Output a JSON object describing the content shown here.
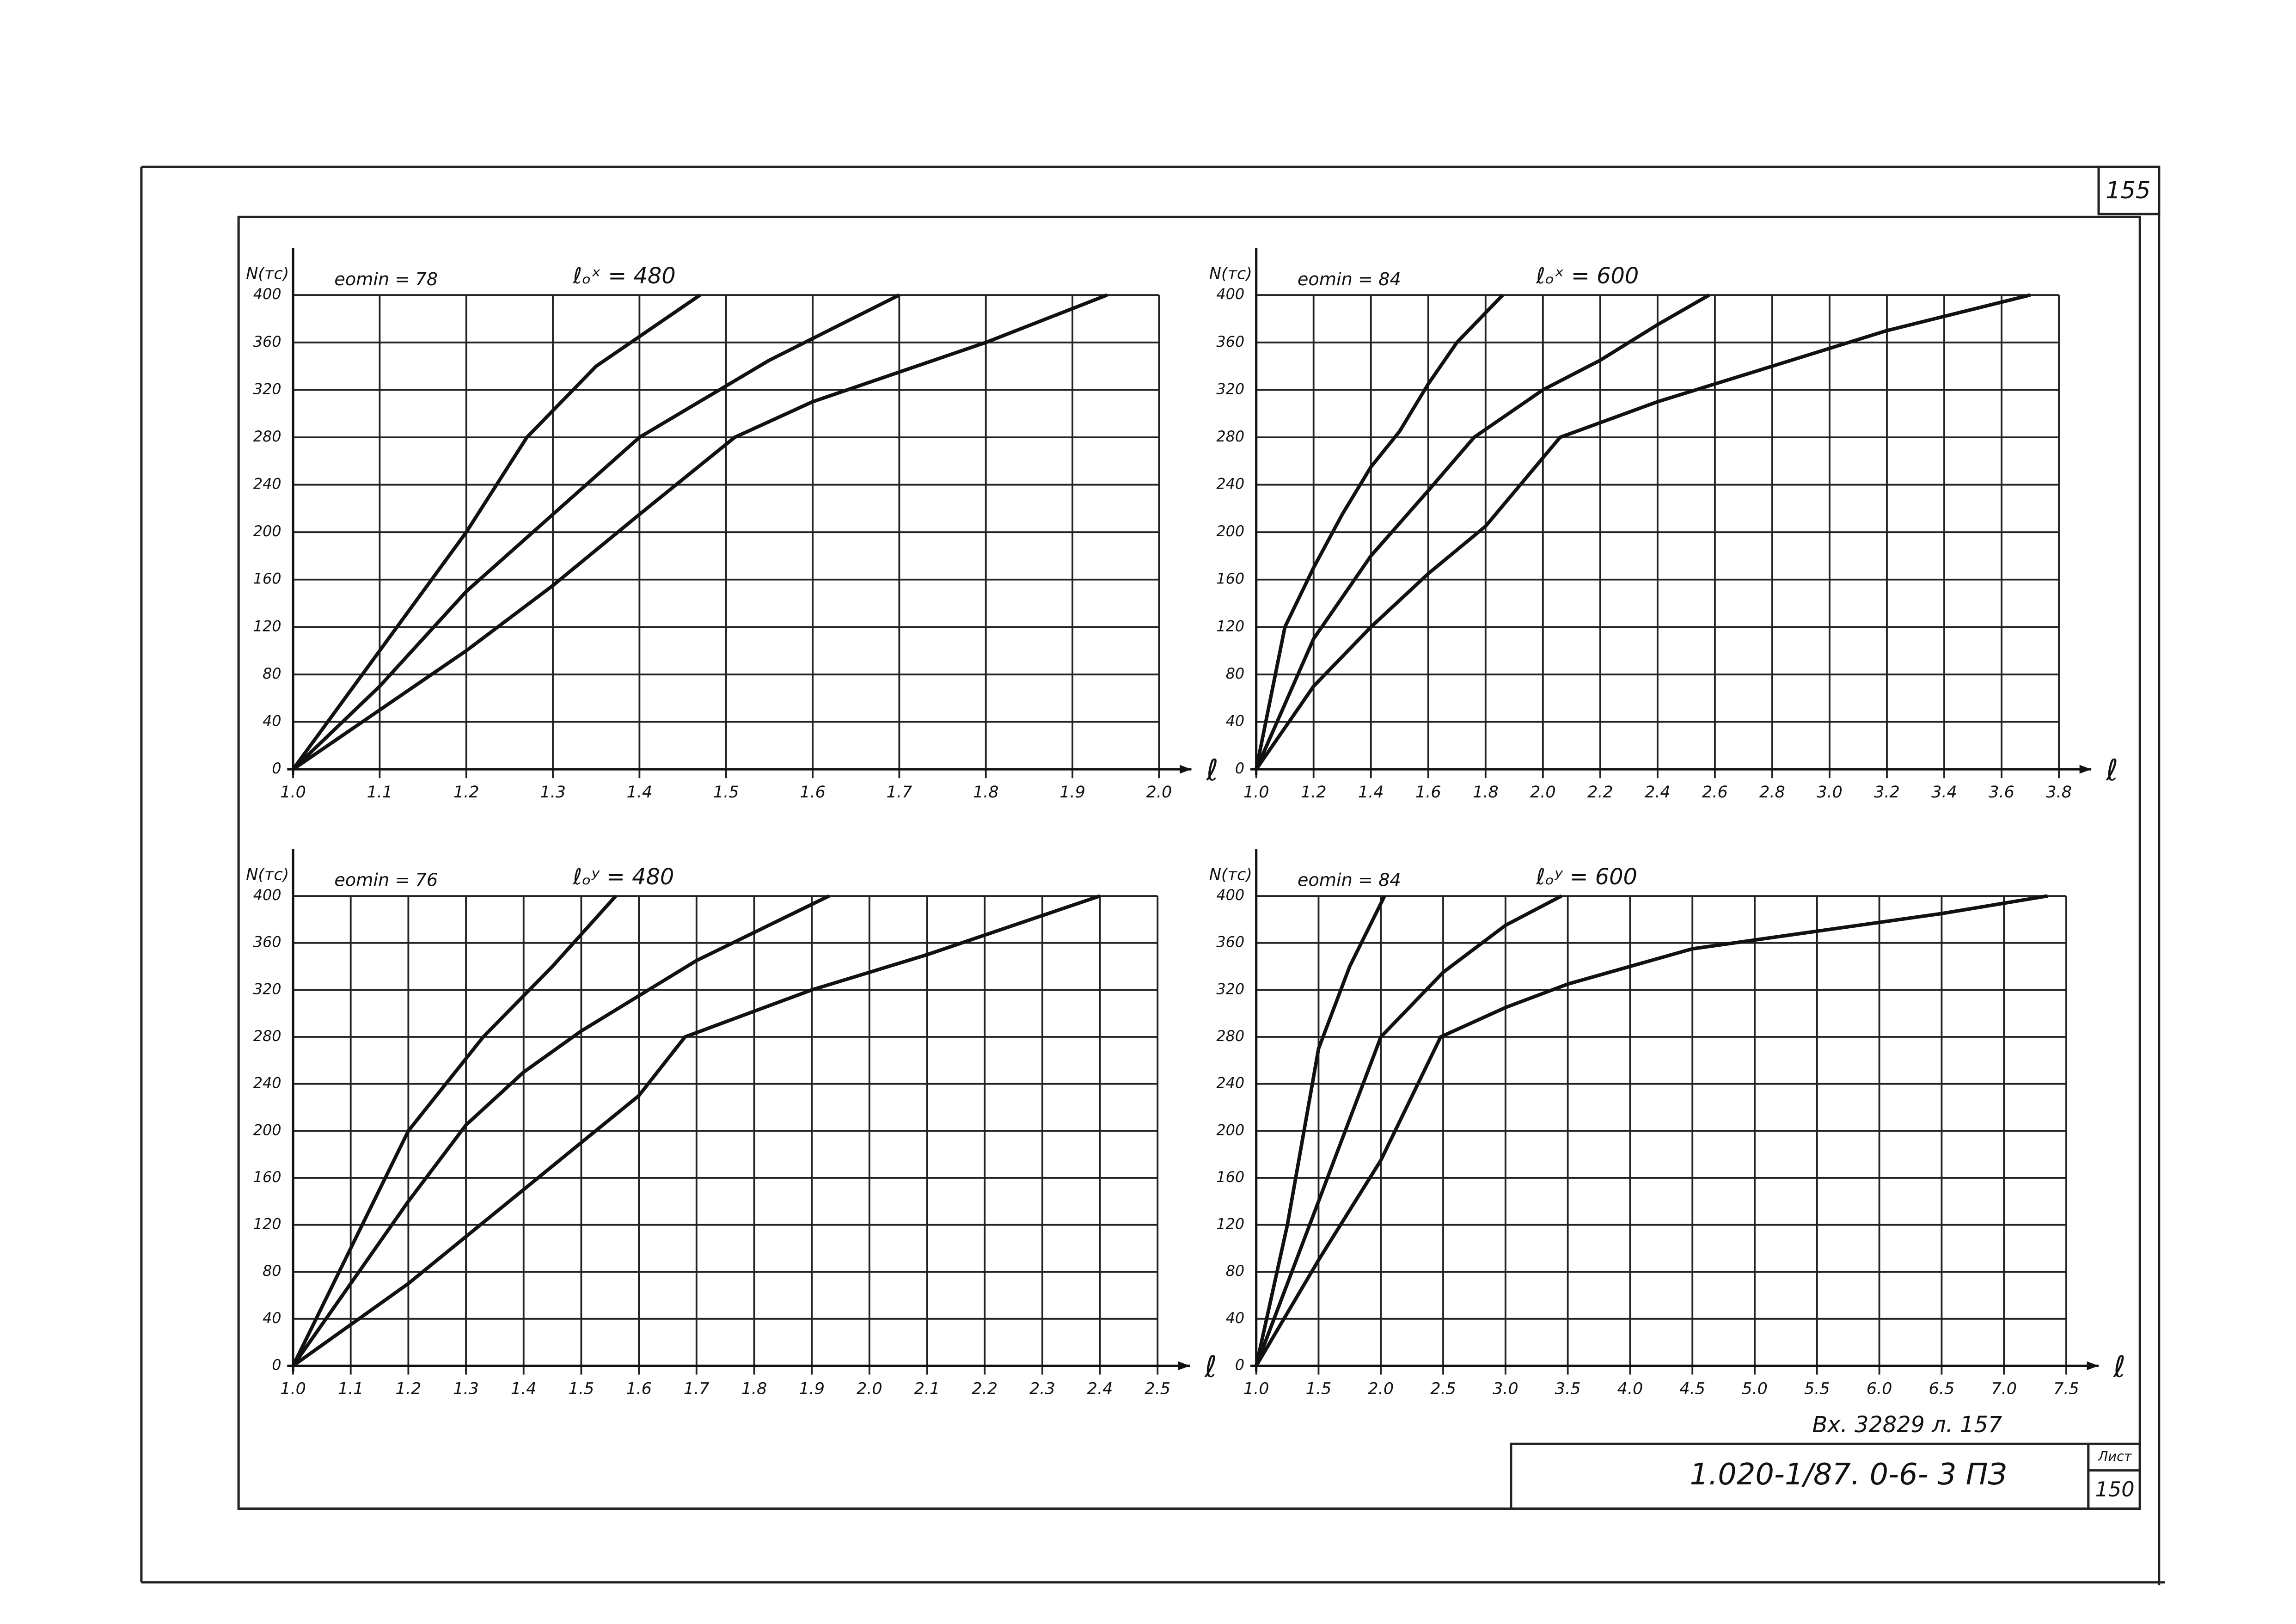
{
  "sheet_number": "155",
  "incoming": "Вх. 32829 л. 157",
  "document_code": "1.020-1/87. 0-6- 3 ПЗ",
  "sheet_label": "Лист",
  "sheet": "150",
  "chart_data": [
    {
      "type": "line",
      "y_label": "N(тс)",
      "x_label": "ℓ",
      "annotations": [
        "eomin = 78",
        "ℓₒˣ = 480"
      ],
      "grid": true,
      "xlim": [
        1,
        2
      ],
      "ylim": [
        0,
        400
      ],
      "xticks": [
        {
          "value": 1,
          "label": "1.0"
        },
        1.1,
        1.2,
        1.3,
        1.4,
        1.5,
        1.6,
        1.7,
        1.8,
        1.9,
        {
          "value": 2,
          "label": "2.0"
        }
      ],
      "yticks": [
        0,
        40,
        80,
        120,
        160,
        200,
        240,
        280,
        320,
        360,
        400
      ],
      "series": [
        {
          "color": "#111111",
          "x": [
            1,
            1.1,
            1.2,
            1.27,
            1.35,
            1.47
          ],
          "values": [
            0,
            100,
            200,
            280,
            340,
            400
          ]
        },
        {
          "color": "#111111",
          "x": [
            1,
            1.1,
            1.2,
            1.3,
            1.4,
            1.55,
            1.7
          ],
          "values": [
            0,
            70,
            150,
            215,
            280,
            345,
            400
          ]
        },
        {
          "color": "#111111",
          "x": [
            1,
            1.1,
            1.2,
            1.3,
            1.4,
            1.51,
            1.6,
            1.7,
            1.8,
            1.94
          ],
          "values": [
            0,
            50,
            100,
            155,
            215,
            280,
            310,
            335,
            360,
            400
          ]
        }
      ]
    },
    {
      "type": "line",
      "y_label": "N(тс)",
      "x_label": "ℓ",
      "annotations": [
        "eomin = 84",
        "ℓₒˣ = 600"
      ],
      "grid": true,
      "xlim": [
        1,
        3.8
      ],
      "ylim": [
        0,
        400
      ],
      "xticks": [
        {
          "value": 1,
          "label": "1.0"
        },
        1.2,
        1.4,
        1.6,
        1.8,
        {
          "value": 2,
          "label": "2.0"
        },
        2.2,
        2.4,
        2.6,
        2.8,
        {
          "value": 3,
          "label": "3.0"
        },
        3.2,
        3.4,
        3.6,
        3.8
      ],
      "yticks": [
        0,
        40,
        80,
        120,
        160,
        200,
        240,
        280,
        320,
        360,
        400
      ],
      "series": [
        {
          "color": "#111111",
          "x": [
            1,
            1.1,
            1.2,
            1.3,
            1.4,
            1.5,
            1.6,
            1.7,
            1.86
          ],
          "values": [
            0,
            120,
            170,
            215,
            255,
            285,
            325,
            360,
            400
          ]
        },
        {
          "color": "#111111",
          "x": [
            1,
            1.2,
            1.4,
            1.6,
            1.76,
            2,
            2.2,
            2.4,
            2.58
          ],
          "values": [
            0,
            110,
            180,
            235,
            280,
            320,
            345,
            375,
            400
          ]
        },
        {
          "color": "#111111",
          "x": [
            1,
            1.2,
            1.4,
            1.6,
            1.8,
            2.06,
            2.4,
            2.8,
            3.2,
            3.7
          ],
          "values": [
            0,
            70,
            120,
            165,
            205,
            280,
            310,
            340,
            370,
            400
          ]
        }
      ]
    },
    {
      "type": "line",
      "y_label": "N(тс)",
      "x_label": "ℓ",
      "annotations": [
        "eomin = 76",
        "ℓₒʸ = 480"
      ],
      "grid": true,
      "xlim": [
        1,
        2.5
      ],
      "ylim": [
        0,
        400
      ],
      "xticks": [
        {
          "value": 1,
          "label": "1.0"
        },
        1.1,
        1.2,
        1.3,
        1.4,
        1.5,
        1.6,
        1.7,
        1.8,
        1.9,
        {
          "value": 2,
          "label": "2.0"
        },
        2.1,
        2.2,
        2.3,
        2.4,
        2.5
      ],
      "yticks": [
        0,
        40,
        80,
        120,
        160,
        200,
        240,
        280,
        320,
        360,
        400
      ],
      "series": [
        {
          "color": "#111111",
          "x": [
            1,
            1.1,
            1.2,
            1.33,
            1.45,
            1.56
          ],
          "values": [
            0,
            100,
            200,
            280,
            340,
            400
          ]
        },
        {
          "color": "#111111",
          "x": [
            1,
            1.1,
            1.2,
            1.3,
            1.4,
            1.5,
            1.7,
            1.93
          ],
          "values": [
            0,
            70,
            140,
            205,
            250,
            285,
            345,
            400
          ]
        },
        {
          "color": "#111111",
          "x": [
            1,
            1.2,
            1.4,
            1.6,
            1.68,
            1.9,
            2.1,
            2.4
          ],
          "values": [
            0,
            70,
            150,
            230,
            280,
            320,
            350,
            400
          ]
        }
      ]
    },
    {
      "type": "line",
      "y_label": "N(тс)",
      "x_label": "ℓ",
      "annotations": [
        "eomin = 84",
        "ℓₒʸ = 600"
      ],
      "grid": true,
      "xlim": [
        1,
        7.5
      ],
      "ylim": [
        0,
        400
      ],
      "xticks": [
        {
          "value": 1,
          "label": "1.0"
        },
        1.5,
        {
          "value": 2,
          "label": "2.0"
        },
        2.5,
        {
          "value": 3,
          "label": "3.0"
        },
        3.5,
        {
          "value": 4,
          "label": "4.0"
        },
        4.5,
        {
          "value": 5,
          "label": "5.0"
        },
        5.5,
        {
          "value": 6,
          "label": "6.0"
        },
        6.5,
        {
          "value": 7,
          "label": "7.0"
        },
        7.5
      ],
      "yticks": [
        0,
        40,
        80,
        120,
        160,
        200,
        240,
        280,
        320,
        360,
        400
      ],
      "series": [
        {
          "color": "#111111",
          "x": [
            1,
            1.25,
            1.5,
            1.75,
            2.03
          ],
          "values": [
            0,
            120,
            270,
            340,
            400
          ]
        },
        {
          "color": "#111111",
          "x": [
            1,
            1.5,
            2,
            2.5,
            3,
            3.45
          ],
          "values": [
            0,
            140,
            280,
            335,
            375,
            400
          ]
        },
        {
          "color": "#111111",
          "x": [
            1,
            1.5,
            2,
            2.48,
            3,
            3.5,
            4.5,
            5.5,
            6.5,
            7.35
          ],
          "values": [
            0,
            90,
            175,
            280,
            305,
            325,
            355,
            370,
            385,
            400
          ]
        }
      ]
    }
  ]
}
